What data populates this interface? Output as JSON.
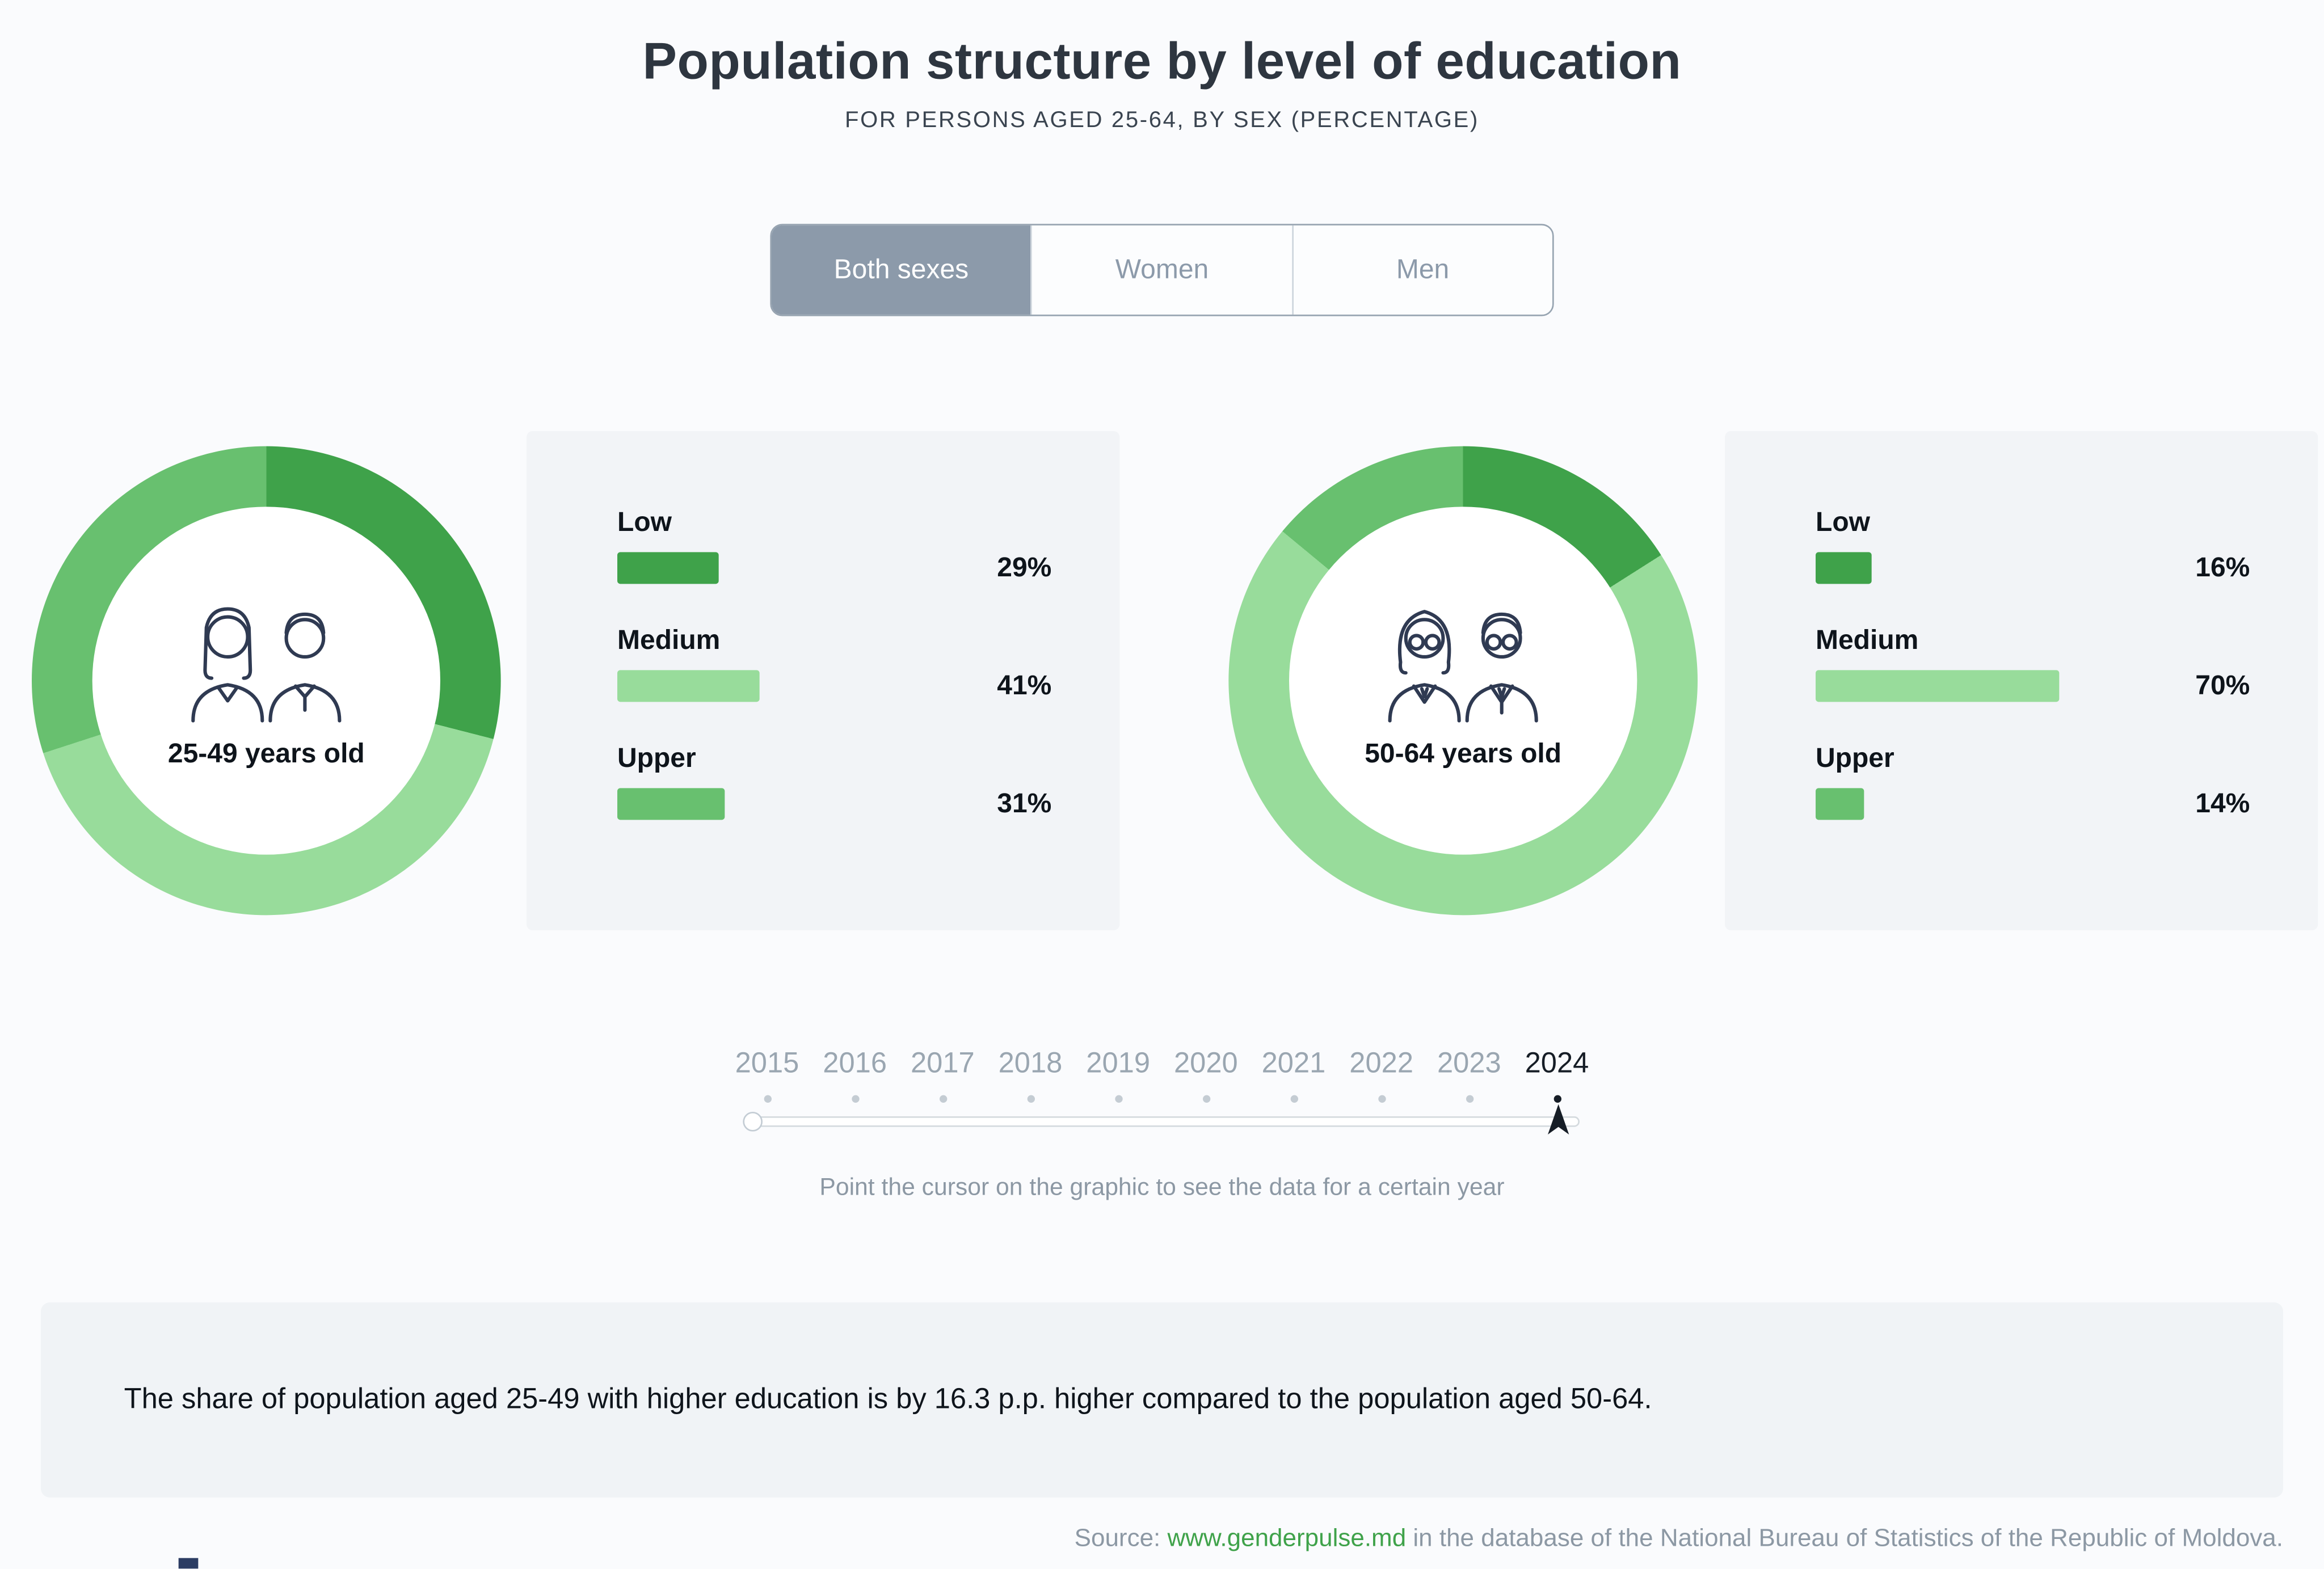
{
  "header": {
    "title": "Population structure by level of education",
    "subtitle": "FOR PERSONS AGED 25-64, BY SEX (PERCENTAGE)"
  },
  "tabs": [
    {
      "label": "Both sexes",
      "active": true
    },
    {
      "label": "Women",
      "active": false
    },
    {
      "label": "Men",
      "active": false
    }
  ],
  "chart_data": [
    {
      "type": "pie",
      "title": "25-49 years old",
      "categories": [
        "Low",
        "Medium",
        "Upper"
      ],
      "values": [
        29,
        41,
        31
      ],
      "labels": [
        "29%",
        "41%",
        "31%"
      ],
      "unit": "percent",
      "legend_position": "right",
      "note": "donut chart, segments start at 12 o'clock clockwise: Low, Medium, Upper"
    },
    {
      "type": "pie",
      "title": "50-64 years old",
      "categories": [
        "Low",
        "Medium",
        "Upper"
      ],
      "values": [
        16,
        70,
        14
      ],
      "labels": [
        "16%",
        "70%",
        "14%"
      ],
      "unit": "percent",
      "legend_position": "right",
      "note": "donut chart, segments start at 12 o'clock clockwise: Low, Medium, Upper"
    }
  ],
  "colors": {
    "series": [
      "#3fa24a",
      "#98dc9b",
      "#68c06f"
    ],
    "tab_active_bg": "#8c9aaa",
    "link_green": "#3fa24a",
    "selected_year": "#161d26",
    "panel_bg": "#f2f4f7"
  },
  "slider": {
    "years": [
      "2015",
      "2016",
      "2017",
      "2018",
      "2019",
      "2020",
      "2021",
      "2022",
      "2023",
      "2024"
    ],
    "selected_year": "2024",
    "hint": "Point the cursor on the graphic to see the data for a certain year"
  },
  "callout": {
    "text": "The share of population aged 25-49 with higher education is by 16.3 p.p. higher compared to the population aged 50-64."
  },
  "source": {
    "prefix": "Source: ",
    "link": "www.genderpulse.md",
    "suffix": " in the database of the National Bureau of Statistics of the Republic of Moldova."
  }
}
